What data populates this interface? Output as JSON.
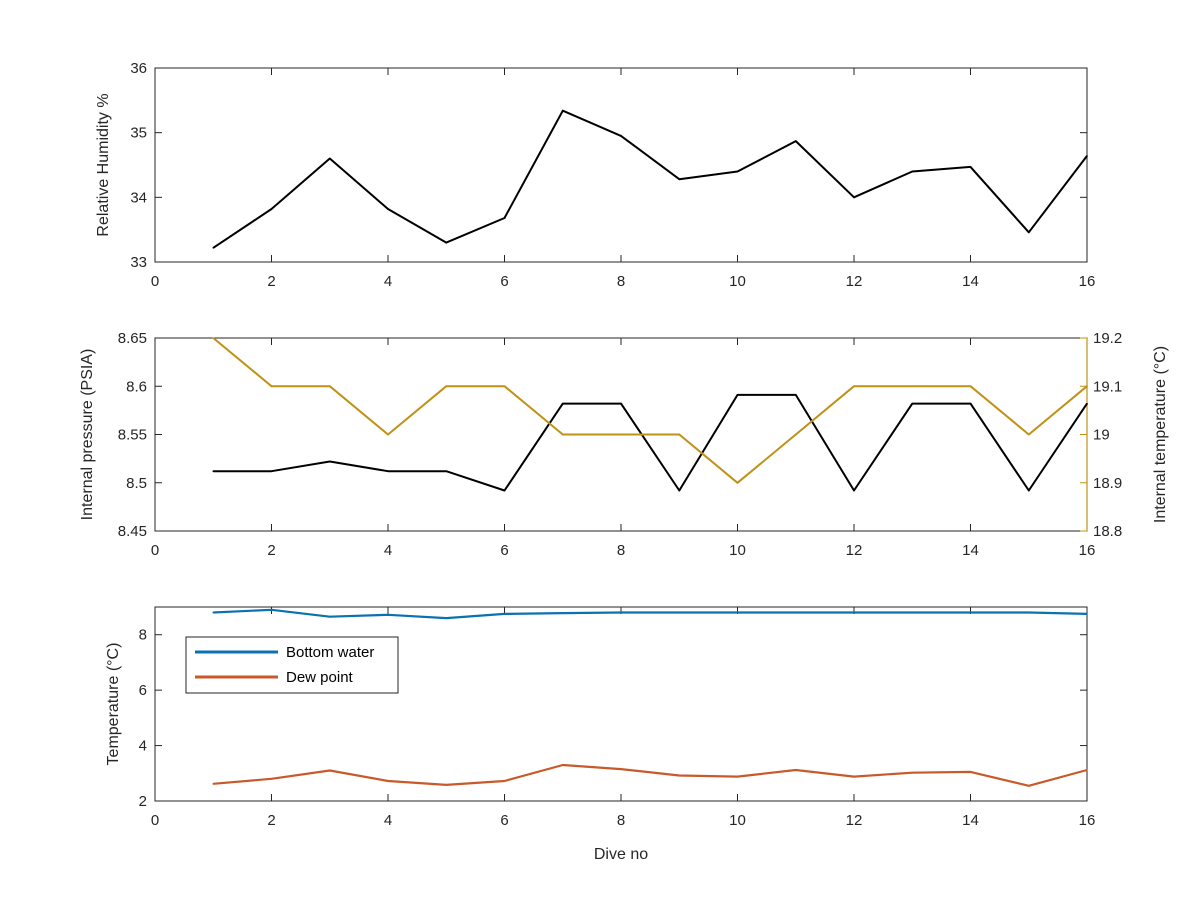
{
  "colors": {
    "axis": "#262626",
    "black_series": "#000000",
    "internal_temperature": "#c09117",
    "bottom_water": "#0b72b0",
    "dew_point": "#c85a2a"
  },
  "chart_data": [
    {
      "type": "line",
      "xlabel": "",
      "ylabel": "Relative Humidity %",
      "xlim": [
        0,
        16
      ],
      "ylim": [
        33,
        36
      ],
      "x_ticks": [
        "0",
        "2",
        "4",
        "6",
        "8",
        "10",
        "12",
        "14",
        "16"
      ],
      "y_ticks": [
        "33",
        "34",
        "35",
        "36"
      ],
      "x": [
        1,
        2,
        3,
        4,
        5,
        6,
        7,
        8,
        9,
        10,
        11,
        12,
        13,
        14,
        15,
        16
      ],
      "series": [
        {
          "values": [
            33.22,
            33.82,
            34.6,
            33.82,
            33.3,
            33.68,
            35.34,
            34.95,
            34.28,
            34.4,
            34.87,
            34.0,
            34.4,
            34.47,
            33.46,
            34.64
          ]
        }
      ]
    },
    {
      "type": "line",
      "xlabel": "",
      "ylabel": "Internal pressure (PSIA)",
      "ylabel_right": "Internal temperature (°C)",
      "xlim": [
        0,
        16
      ],
      "ylim": [
        8.45,
        8.65
      ],
      "ylim_right": [
        18.8,
        19.2
      ],
      "x_ticks": [
        "0",
        "2",
        "4",
        "6",
        "8",
        "10",
        "12",
        "14",
        "16"
      ],
      "y_ticks": [
        "8.45",
        "8.5",
        "8.55",
        "8.6",
        "8.65"
      ],
      "y_ticks_right": [
        "18.8",
        "18.9",
        "19",
        "19.1",
        "19.2"
      ],
      "x": [
        1,
        2,
        3,
        4,
        5,
        6,
        7,
        8,
        9,
        10,
        11,
        12,
        13,
        14,
        15,
        16
      ],
      "series": [
        {
          "axis": "left",
          "values": [
            8.512,
            8.512,
            8.522,
            8.512,
            8.512,
            8.492,
            8.582,
            8.582,
            8.492,
            8.591,
            8.591,
            8.492,
            8.582,
            8.582,
            8.492,
            8.582
          ]
        },
        {
          "axis": "right",
          "values": [
            19.2,
            19.1,
            19.1,
            19.0,
            19.1,
            19.1,
            19.0,
            19.0,
            19.0,
            18.9,
            19.0,
            19.1,
            19.1,
            19.1,
            19.0,
            19.1
          ]
        }
      ]
    },
    {
      "type": "line",
      "xlabel": "Dive no",
      "ylabel": "Temperature (°C)",
      "xlim": [
        0,
        16
      ],
      "ylim": [
        2,
        9
      ],
      "x_ticks": [
        "0",
        "2",
        "4",
        "6",
        "8",
        "10",
        "12",
        "14",
        "16"
      ],
      "y_ticks": [
        "2",
        "4",
        "6",
        "8"
      ],
      "legend_position": "top-left",
      "x": [
        1,
        2,
        3,
        4,
        5,
        6,
        7,
        8,
        9,
        10,
        11,
        12,
        13,
        14,
        15,
        16
      ],
      "series": [
        {
          "name": "Bottom water",
          "values": [
            8.8,
            8.9,
            8.65,
            8.72,
            8.6,
            8.75,
            8.78,
            8.8,
            8.8,
            8.8,
            8.8,
            8.8,
            8.8,
            8.8,
            8.8,
            8.75
          ]
        },
        {
          "name": "Dew point",
          "values": [
            2.62,
            2.8,
            3.1,
            2.72,
            2.58,
            2.72,
            3.3,
            3.15,
            2.92,
            2.88,
            3.12,
            2.88,
            3.02,
            3.05,
            2.55,
            3.12
          ]
        }
      ]
    }
  ]
}
